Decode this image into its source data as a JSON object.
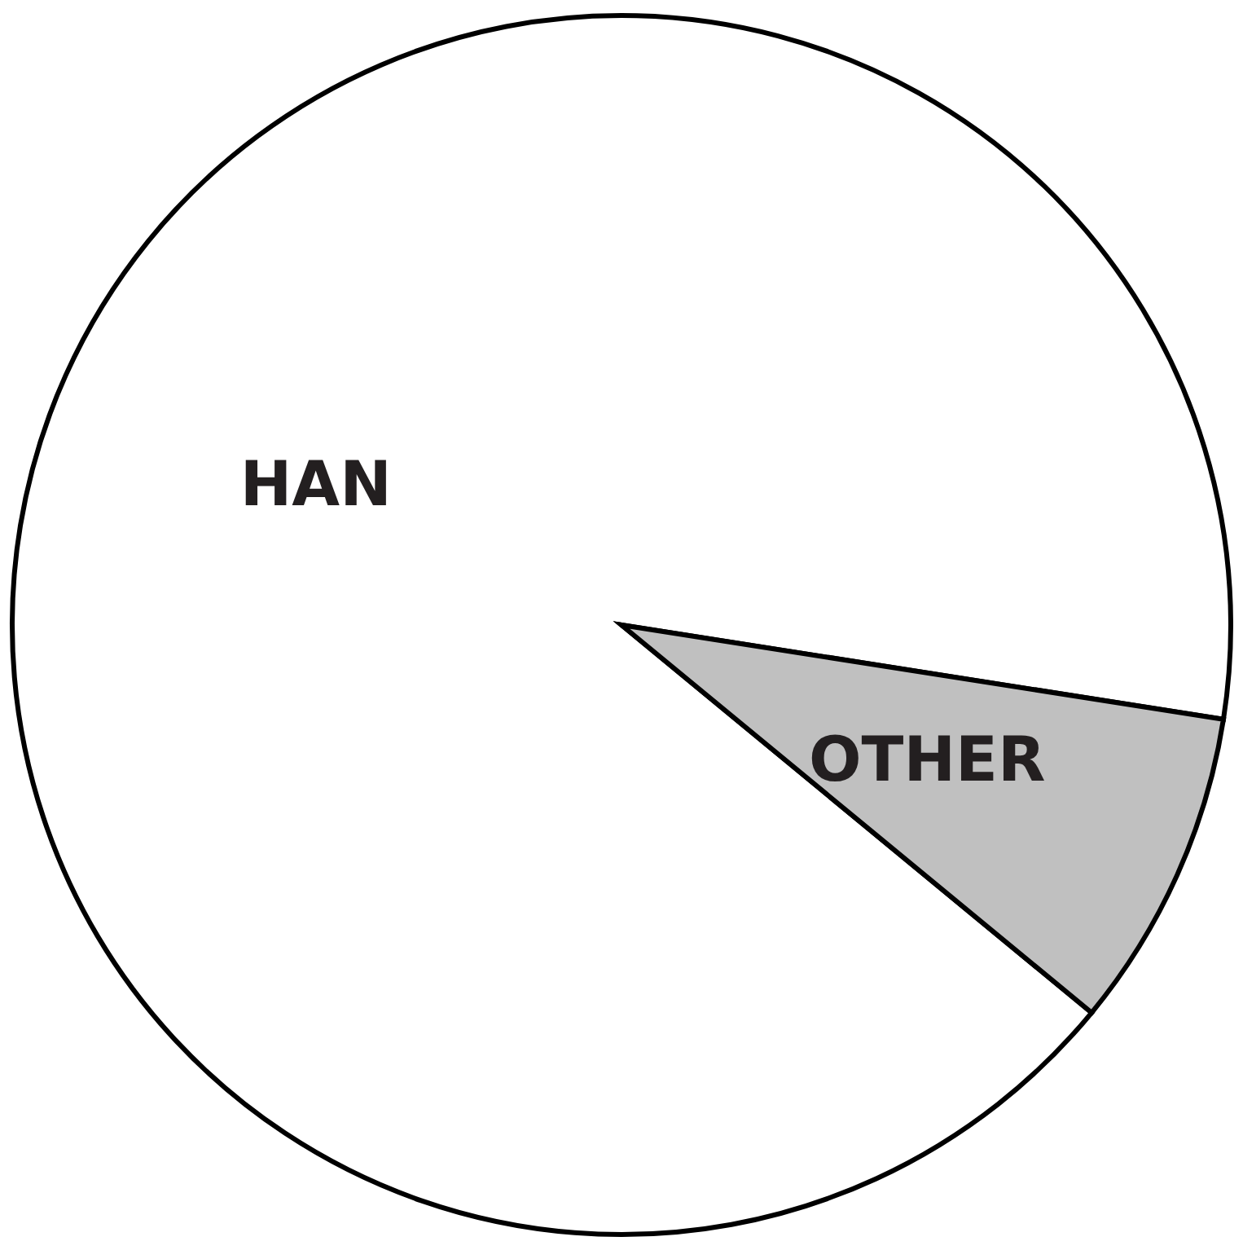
{
  "chart_data": {
    "type": "pie",
    "categories": [
      "HAN",
      "OTHER"
    ],
    "values": [
      91.5,
      8.5
    ],
    "colors": [
      "#ffffff",
      "#c0c0c0"
    ]
  }
}
